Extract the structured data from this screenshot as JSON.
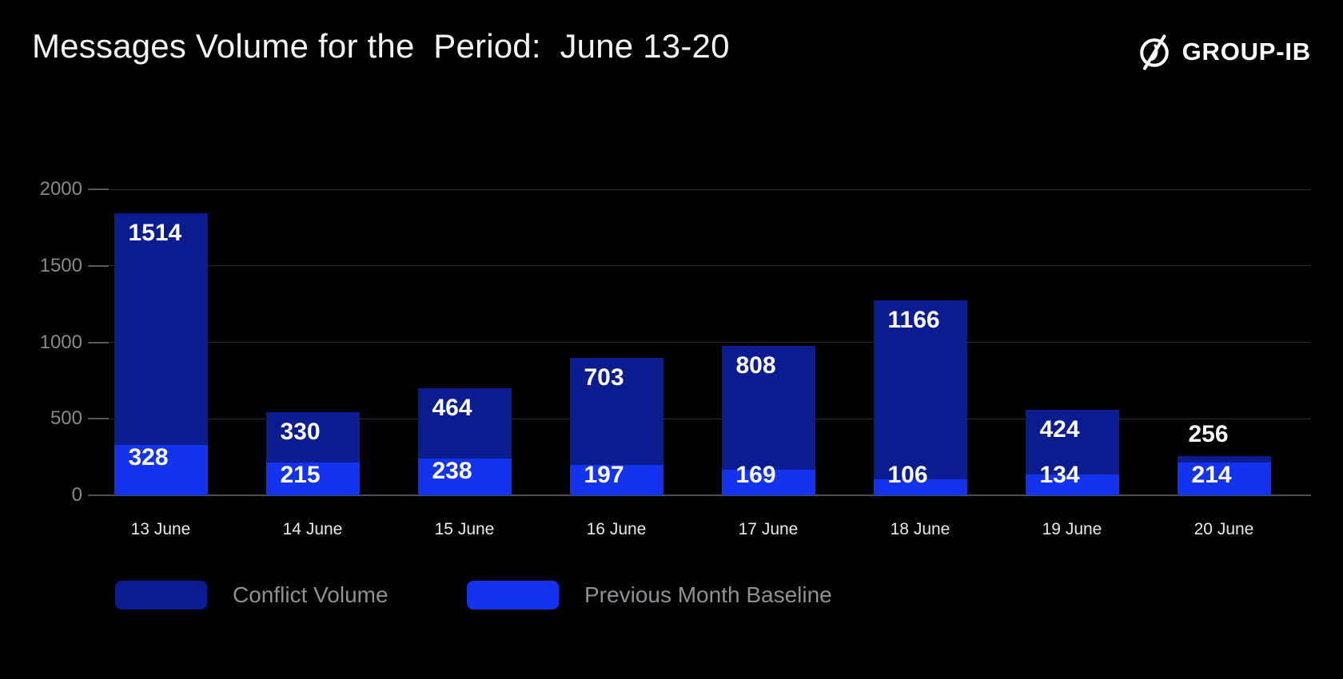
{
  "header": {
    "title": "Messages Volume for the  Period:  June 13-20",
    "brand": "GROUP-IB"
  },
  "colors": {
    "background": "#000000",
    "conflict_bar": "#0b1c90",
    "baseline_bar": "#1433ee",
    "gridline": "#2a2b2f",
    "axis_line": "#4b4d52",
    "axis_label": "#87898d",
    "legend_text": "#8e9095",
    "value_text": "#ffffff"
  },
  "chart_data": {
    "type": "bar",
    "title": "Messages Volume for the  Period:  June 13-20",
    "xlabel": "",
    "ylabel": "",
    "categories": [
      "13 June",
      "14 June",
      "15 June",
      "16 June",
      "17 June",
      "18 June",
      "19 June",
      "20 June"
    ],
    "series": [
      {
        "name": "Conflict Volume",
        "color": "#0b1c90",
        "values": [
          1514,
          330,
          464,
          703,
          808,
          1166,
          424,
          256
        ]
      },
      {
        "name": "Previous Month Baseline",
        "color": "#1433ee",
        "values": [
          328,
          215,
          238,
          197,
          169,
          106,
          134,
          214
        ]
      }
    ],
    "ylim": [
      0,
      2000
    ],
    "yticks": [
      0,
      500,
      1000,
      1500,
      2000
    ],
    "grid": true,
    "legend_position": "bottom-left",
    "bar_model": "baseline bar overlaid at bottom of stacked conflict bar; value label drawn above bar when dark segment too short"
  }
}
